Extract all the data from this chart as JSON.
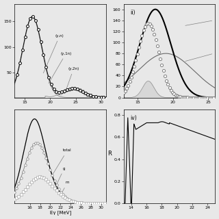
{
  "bg_color": "#e8e8e8",
  "panel_i": {
    "xlim": [
      13,
      31
    ],
    "ylim": [
      0,
      185
    ],
    "xticks": [
      15,
      20,
      25,
      30
    ],
    "yticks": [
      50,
      100,
      150
    ]
  },
  "panel_ii": {
    "label": "ii)",
    "xlim": [
      13,
      26
    ],
    "ylim": [
      0,
      170
    ],
    "xticks": [
      15,
      20,
      25
    ],
    "yticks": [
      0,
      20,
      40,
      60,
      80,
      100,
      120,
      140,
      160
    ]
  },
  "panel_iii": {
    "xlim": [
      13,
      31
    ],
    "ylim": [
      0,
      1.05
    ],
    "xticks": [
      16,
      18,
      20,
      22,
      24,
      26,
      28,
      30
    ],
    "xlabel": "Eγ [MeV]"
  },
  "panel_iv": {
    "label": "iv)",
    "xlim": [
      13,
      25
    ],
    "ylim": [
      0,
      0.85
    ],
    "xticks": [
      14,
      16,
      18,
      20,
      22,
      24
    ],
    "yticks": [
      0.0,
      0.2,
      0.4,
      0.6,
      0.8
    ],
    "ylabel": "R"
  }
}
